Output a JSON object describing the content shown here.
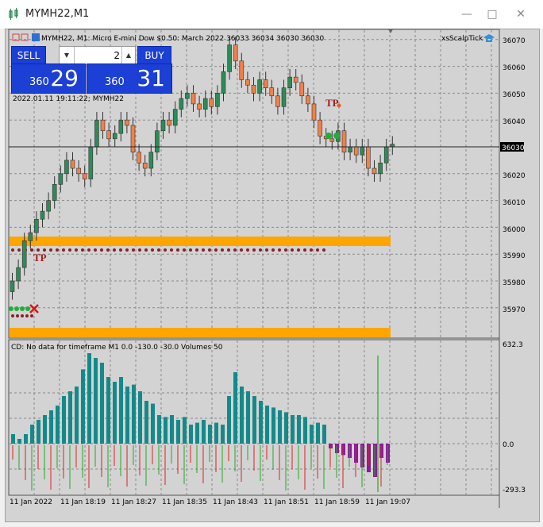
{
  "window": {
    "title": "MYMH22,M1"
  },
  "chart": {
    "header": "MYMH22, M1:  Micro E-mini Dow $0.50: March 2022  36033 36034 36030 36030",
    "indicator": "xsScalpTick",
    "timestamp": "2022.01.11 19:11:22; MYMH22",
    "current_price": "36030",
    "price_ticks": [
      "36070",
      "36060",
      "36050",
      "36040",
      "36030",
      "36020",
      "36010",
      "36000",
      "35990",
      "35980",
      "35970"
    ],
    "tp_label": "TP",
    "sub_window": {
      "title": "CD: No data for timeframe M1 0.0 -130.0 -30.0 Volumes 50",
      "ticks": [
        "632.3",
        "0.0",
        "-293.3"
      ]
    },
    "time_ticks": [
      "11 Jan 2022",
      "11 Jan 18:19",
      "11 Jan 18:27",
      "11 Jan 18:35",
      "11 Jan 18:43",
      "11 Jan 18:51",
      "11 Jan 18:59",
      "11 Jan 19:07"
    ]
  },
  "trade_panel": {
    "sell_label": "SELL",
    "buy_label": "BUY",
    "lot": "2",
    "sell_small": "360",
    "sell_big": "29",
    "buy_small": "360",
    "buy_big": "31"
  },
  "colors": {
    "bull": "#2e8b57",
    "bear": "#f0814a",
    "hist_pos": "#138a8a",
    "hist_neg": "#8b1a9a",
    "band": "#ffa500"
  }
}
